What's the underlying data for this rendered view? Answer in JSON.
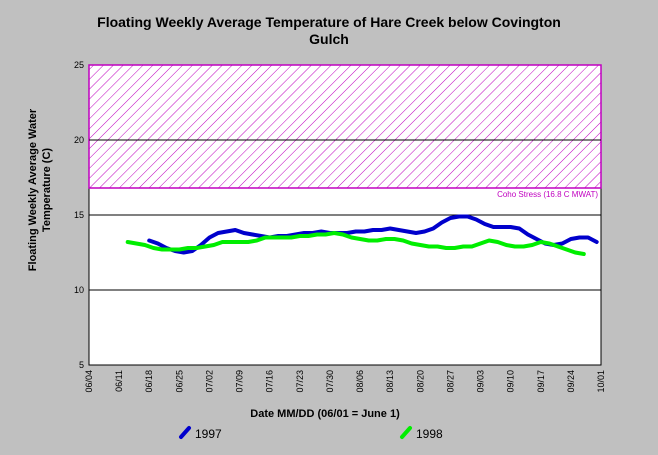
{
  "chart_data": {
    "type": "line",
    "title_line1": "Floating Weekly Average Temperature of Hare Creek below Covington",
    "title_line2": "Gulch",
    "ylabel_line1": "Floating Weekly Average Water",
    "ylabel_line2": "Temperature (C)",
    "xlabel": "Date MM/DD (06/01 = June 1)",
    "ylim": [
      5,
      25
    ],
    "yticks": [
      5,
      10,
      15,
      20,
      25
    ],
    "xticks": [
      "06/04",
      "06/11",
      "06/18",
      "06/25",
      "07/02",
      "07/09",
      "07/16",
      "07/23",
      "07/30",
      "08/06",
      "08/13",
      "08/20",
      "08/27",
      "09/03",
      "09/10",
      "09/17",
      "09/24",
      "10/01"
    ],
    "grid": "horizontal",
    "stress_band": {
      "label": "Coho Stress (16.8 C MWAT)",
      "from": 16.8,
      "to": 25,
      "color": "#c000c0"
    },
    "series": [
      {
        "name": "1997",
        "color": "#0000cc",
        "x": [
          "06/18",
          "06/20",
          "06/22",
          "06/24",
          "06/26",
          "06/28",
          "06/30",
          "07/02",
          "07/04",
          "07/06",
          "07/08",
          "07/10",
          "07/12",
          "07/14",
          "07/16",
          "07/18",
          "07/20",
          "07/22",
          "07/24",
          "07/26",
          "07/28",
          "07/30",
          "08/01",
          "08/03",
          "08/05",
          "08/07",
          "08/09",
          "08/11",
          "08/13",
          "08/15",
          "08/17",
          "08/19",
          "08/21",
          "08/23",
          "08/25",
          "08/27",
          "08/29",
          "08/31",
          "09/02",
          "09/04",
          "09/06",
          "09/08",
          "09/10",
          "09/12",
          "09/14",
          "09/16",
          "09/18",
          "09/20",
          "09/22",
          "09/24",
          "09/26",
          "09/28",
          "09/30"
        ],
        "values": [
          13.3,
          13.1,
          12.8,
          12.6,
          12.5,
          12.6,
          13.0,
          13.5,
          13.8,
          13.9,
          14.0,
          13.8,
          13.7,
          13.6,
          13.5,
          13.6,
          13.6,
          13.7,
          13.8,
          13.8,
          13.9,
          13.8,
          13.8,
          13.8,
          13.9,
          13.9,
          14.0,
          14.0,
          14.1,
          14.0,
          13.9,
          13.8,
          13.9,
          14.1,
          14.5,
          14.8,
          14.9,
          14.9,
          14.7,
          14.4,
          14.2,
          14.2,
          14.2,
          14.1,
          13.7,
          13.4,
          13.1,
          13.0,
          13.1,
          13.4,
          13.5,
          13.5,
          13.2
        ]
      },
      {
        "name": "1998",
        "color": "#00ee00",
        "x": [
          "06/13",
          "06/15",
          "06/17",
          "06/19",
          "06/21",
          "06/23",
          "06/25",
          "06/27",
          "06/29",
          "07/01",
          "07/03",
          "07/05",
          "07/07",
          "07/09",
          "07/11",
          "07/13",
          "07/15",
          "07/17",
          "07/19",
          "07/21",
          "07/23",
          "07/25",
          "07/27",
          "07/29",
          "07/31",
          "08/02",
          "08/04",
          "08/06",
          "08/08",
          "08/10",
          "08/12",
          "08/14",
          "08/16",
          "08/18",
          "08/20",
          "08/22",
          "08/24",
          "08/26",
          "08/28",
          "08/30",
          "09/01",
          "09/03",
          "09/05",
          "09/07",
          "09/09",
          "09/11",
          "09/13",
          "09/15",
          "09/17",
          "09/19",
          "09/21",
          "09/23",
          "09/25",
          "09/27"
        ],
        "values": [
          13.2,
          13.1,
          13.0,
          12.8,
          12.7,
          12.7,
          12.7,
          12.8,
          12.8,
          12.9,
          13.0,
          13.2,
          13.2,
          13.2,
          13.2,
          13.3,
          13.5,
          13.5,
          13.5,
          13.5,
          13.6,
          13.6,
          13.7,
          13.7,
          13.8,
          13.7,
          13.5,
          13.4,
          13.3,
          13.3,
          13.4,
          13.4,
          13.3,
          13.1,
          13.0,
          12.9,
          12.9,
          12.8,
          12.8,
          12.9,
          12.9,
          13.1,
          13.3,
          13.2,
          13.0,
          12.9,
          12.9,
          13.0,
          13.2,
          13.1,
          12.9,
          12.7,
          12.5,
          12.4
        ]
      }
    ]
  }
}
